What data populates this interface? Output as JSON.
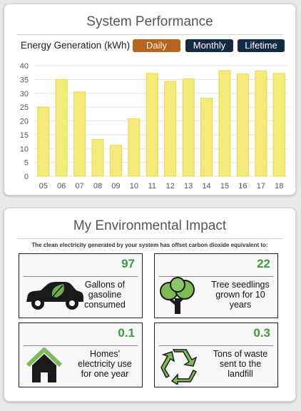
{
  "performance": {
    "title": "System Performance",
    "energy_label": "Energy Generation (kWh)",
    "tabs": {
      "daily": "Daily",
      "monthly": "Monthly",
      "lifetime": "Lifetime"
    }
  },
  "chart_data": {
    "type": "bar",
    "title": "",
    "xlabel": "",
    "ylabel": "",
    "categories": [
      "05",
      "06",
      "07",
      "08",
      "09",
      "10",
      "11",
      "12",
      "13",
      "14",
      "15",
      "16",
      "17",
      "18"
    ],
    "values": [
      25,
      35,
      30.5,
      13.3,
      11.2,
      20.8,
      37.2,
      34.3,
      35.2,
      28.2,
      38.2,
      37,
      38.1,
      37.2
    ],
    "ylim": [
      0,
      40
    ],
    "yticks": [
      "0",
      "5",
      "10",
      "15",
      "20",
      "25",
      "30",
      "35",
      "40"
    ],
    "grid": true,
    "colors": {
      "fill": "#f3ea79",
      "stroke": "#e6d94a",
      "grid": "#e4e4e4"
    }
  },
  "environment": {
    "title": "My Environmental Impact",
    "subtitle": "The clean electricity generated by your system has offset carbon dioxide equivalent to:",
    "tiles": [
      {
        "value": "97",
        "label": "Gallons of gasoline consumed",
        "icon": "car-leaf-icon"
      },
      {
        "value": "22",
        "label": "Tree seedlings grown for 10 years",
        "icon": "tree-icon"
      },
      {
        "value": "0.1",
        "label": "Homes' electricity use for one year",
        "icon": "home-icon"
      },
      {
        "value": "0.3",
        "label": "Tons of waste sent to the landfill",
        "icon": "recycle-icon"
      }
    ],
    "accent": "#3f9b3f"
  }
}
